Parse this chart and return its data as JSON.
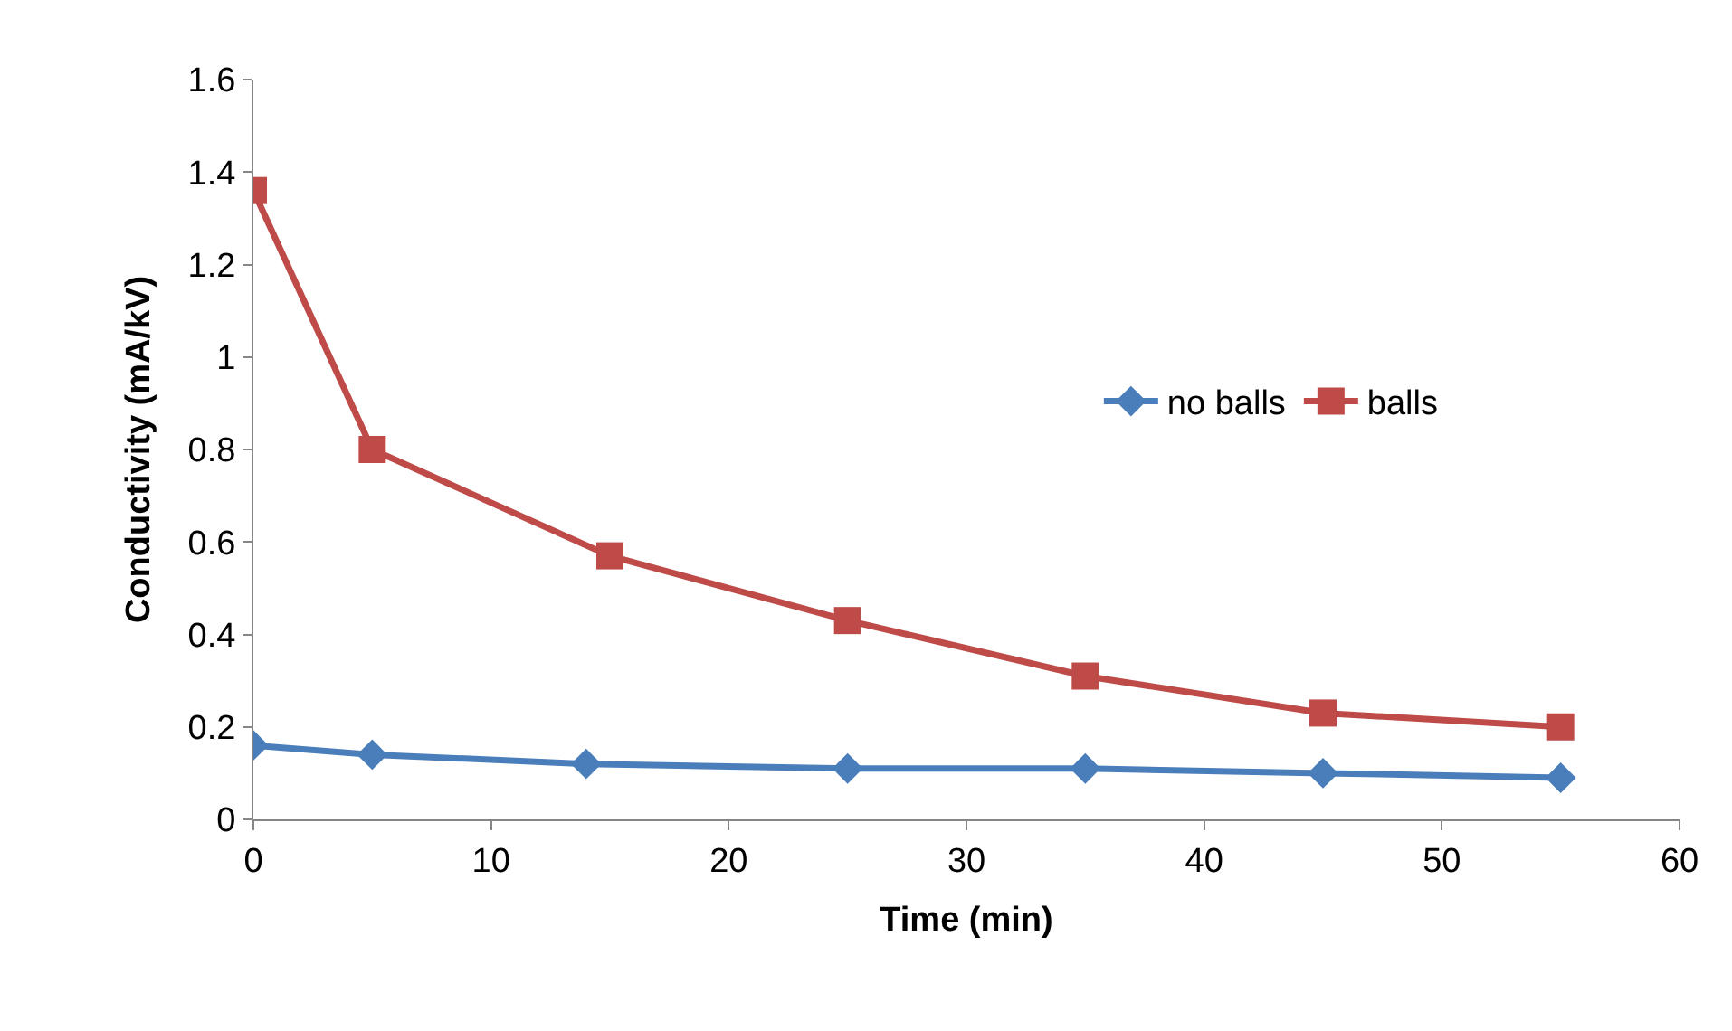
{
  "chart_data": {
    "type": "line",
    "xlabel": "Time (min)",
    "ylabel": "Conductivity (mA/kV)",
    "xlim": [
      0,
      60
    ],
    "xticks": [
      0,
      10,
      20,
      30,
      40,
      50,
      60
    ],
    "ylim": [
      0,
      1.6
    ],
    "yticks": [
      0,
      0.2,
      0.4,
      0.6,
      0.8,
      1,
      1.2,
      1.4,
      1.6
    ],
    "legend": "right",
    "line_style": "solid",
    "series": [
      {
        "name": "no balls",
        "color": "#4a7ebb",
        "marker": "diamond",
        "x": [
          0,
          5,
          14,
          25,
          35,
          45,
          55
        ],
        "values": [
          0.16,
          0.14,
          0.12,
          0.11,
          0.11,
          0.1,
          0.09
        ]
      },
      {
        "name": "balls",
        "color": "#be4b48",
        "marker": "square",
        "x": [
          0,
          5,
          15,
          25,
          35,
          45,
          55
        ],
        "values": [
          1.36,
          0.8,
          0.57,
          0.43,
          0.31,
          0.23,
          0.2
        ]
      }
    ]
  }
}
